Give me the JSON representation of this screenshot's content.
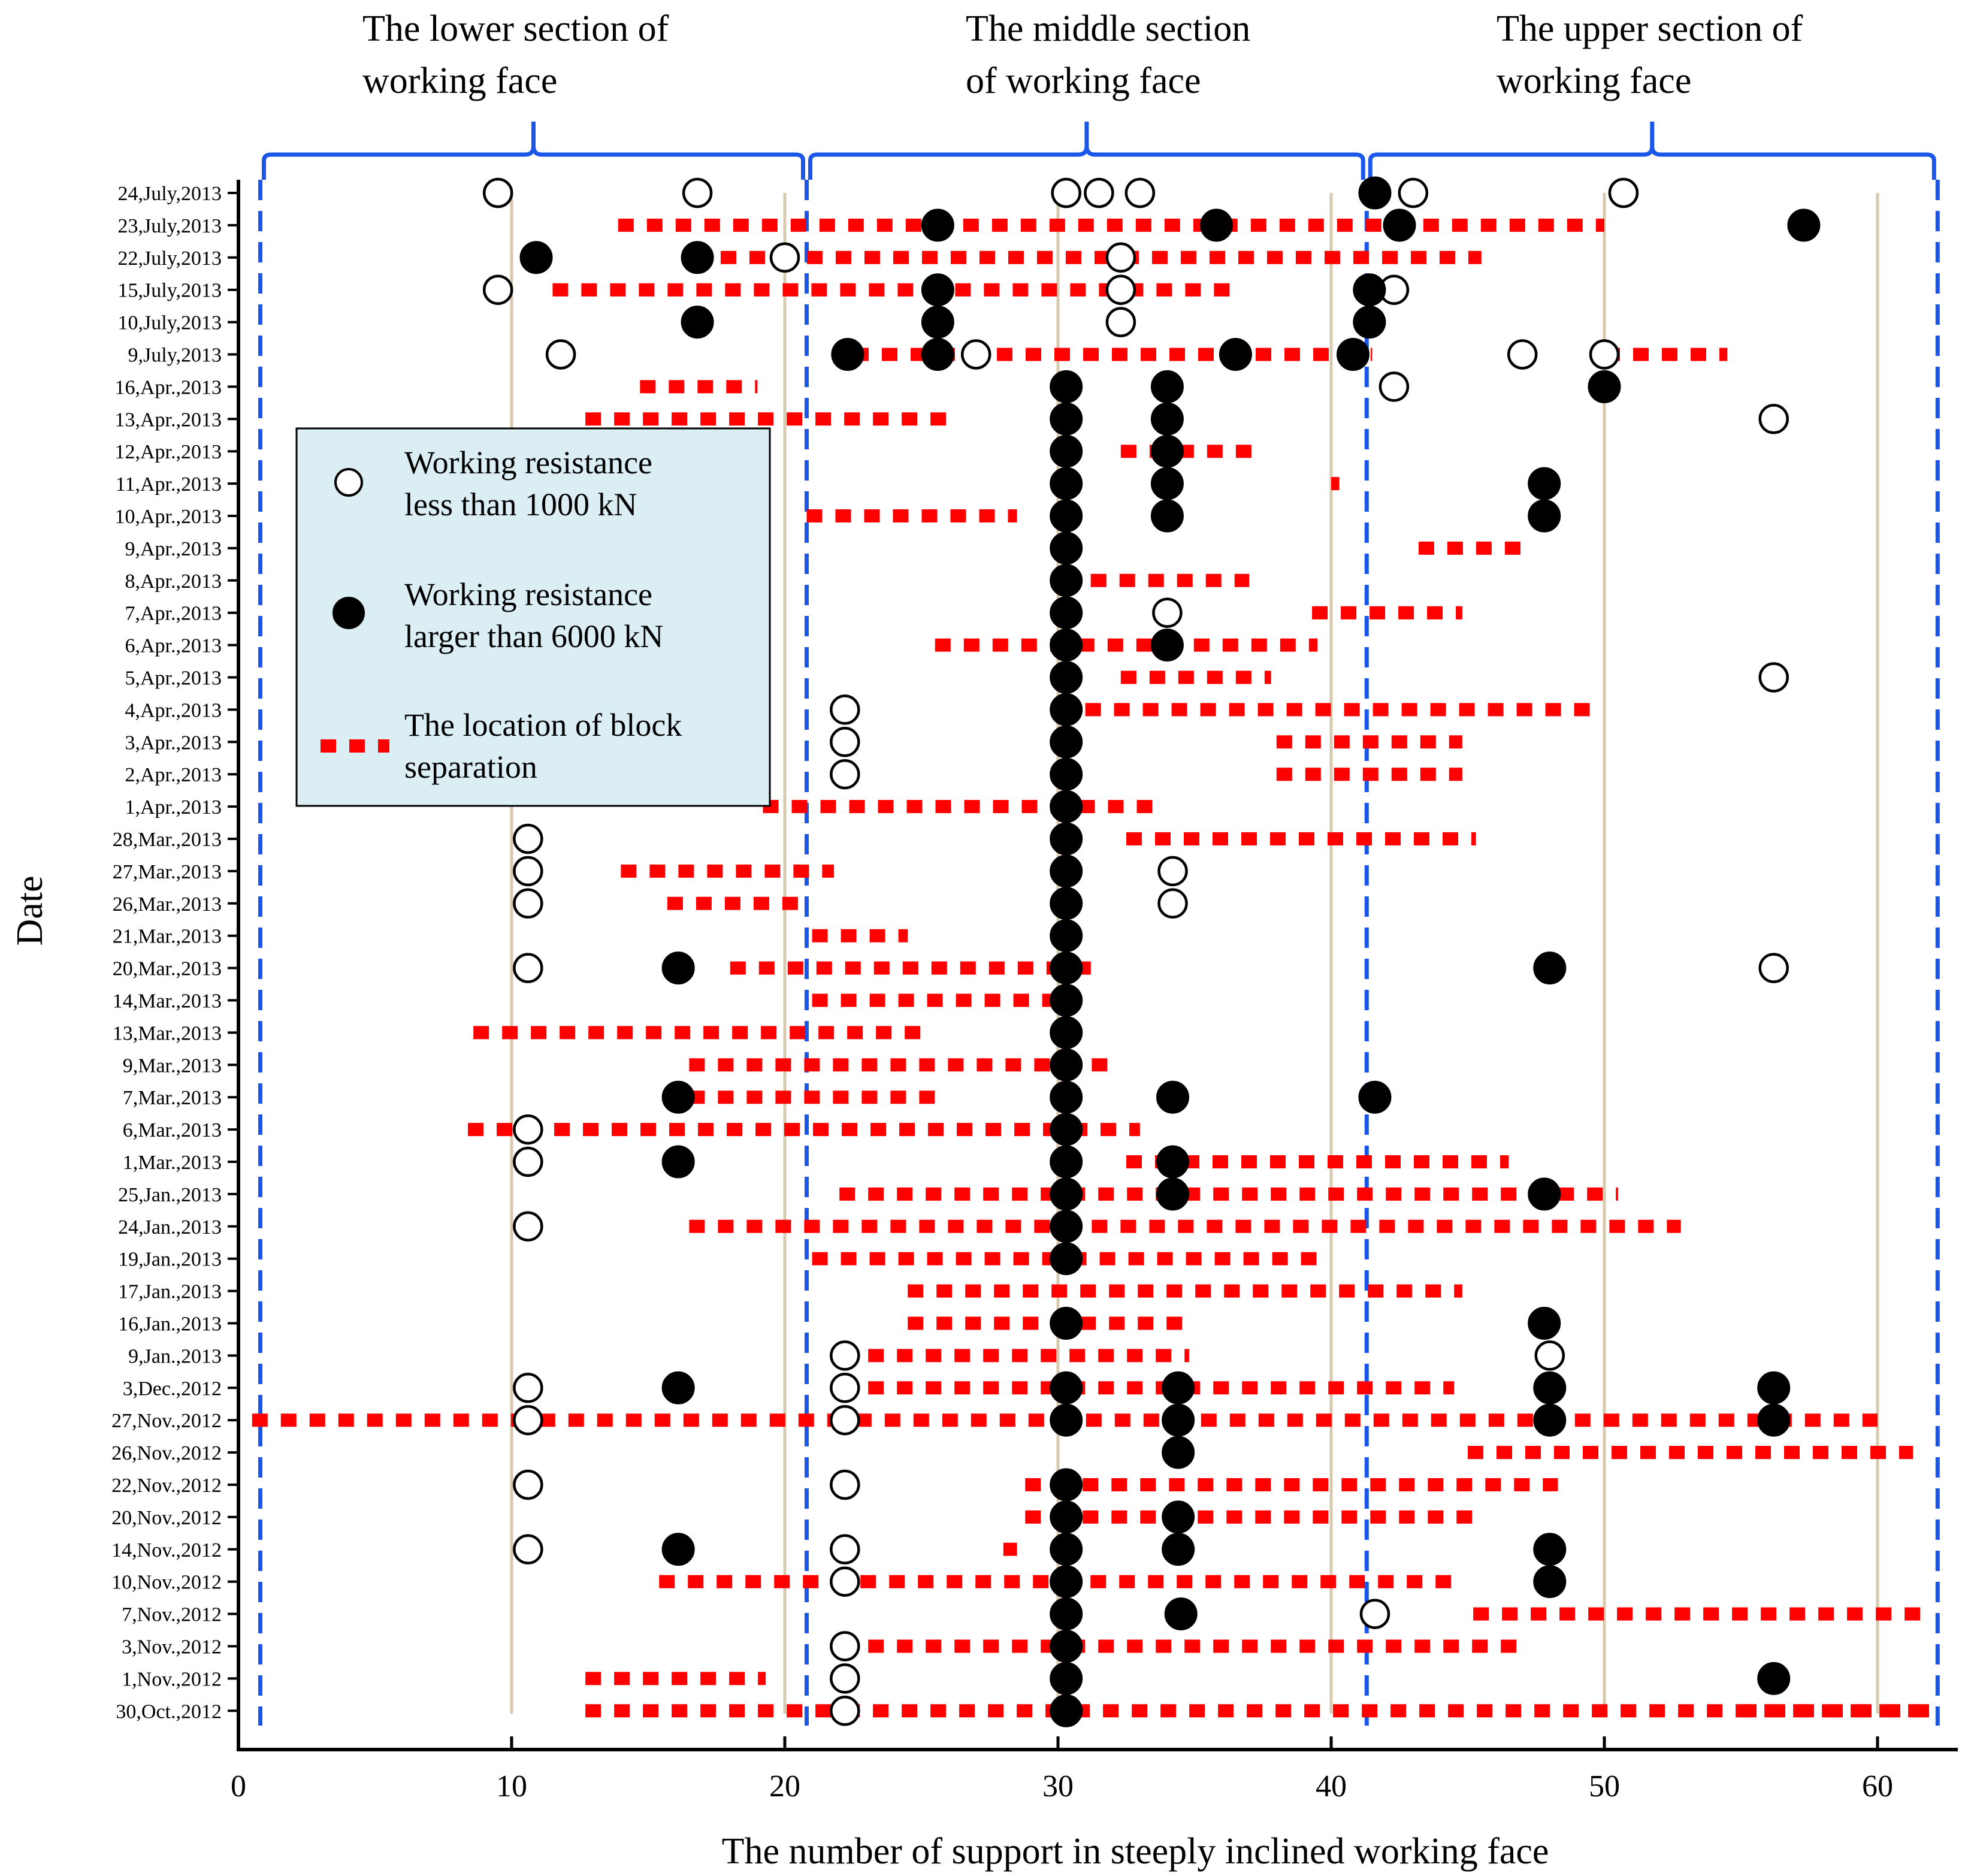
{
  "chart_data": {
    "type": "scatter",
    "title": "",
    "xlabel": "The number of support in steeply inclined working face",
    "ylabel": "Date",
    "xlim": [
      0,
      63
    ],
    "xticks": [
      0,
      10,
      20,
      30,
      40,
      50,
      60
    ],
    "colors": {
      "section_brace": "#1a56e8",
      "block_separation": "#ff0000",
      "gridline": "#d8c8ad",
      "legend_bg": "#daeef3",
      "point_stroke": "#000000"
    },
    "sections": [
      {
        "name": "The lower section of working face",
        "line1": "The lower section of",
        "line2": "working face",
        "range": [
          0.8,
          20.8
        ]
      },
      {
        "name": "The middle section of working face",
        "line1": "The middle section",
        "line2": "of working face",
        "range": [
          20.8,
          41.3
        ]
      },
      {
        "name": "The upper section of working face",
        "line1": "The upper section of",
        "line2": "working face",
        "range": [
          41.3,
          62.2
        ]
      }
    ],
    "legend": {
      "entries": [
        {
          "key": "low",
          "line1": "Working resistance",
          "line2": "less than 1000 kN"
        },
        {
          "key": "high",
          "line1": "Working resistance",
          "line2": "larger  than 6000 kN"
        },
        {
          "key": "sep",
          "line1": "The location of block",
          "line2": "separation"
        }
      ]
    },
    "dates": [
      "24,July,2013",
      "23,July,2013",
      "22,July,2013",
      "15,July,2013",
      "10,July,2013",
      "9,July,2013",
      "16,Apr.,2013",
      "13,Apr.,2013",
      "12,Apr.,2013",
      "11,Apr.,2013",
      "10,Apr.,2013",
      "9,Apr.,2013",
      "8,Apr.,2013",
      "7,Apr.,2013",
      "6,Apr.,2013",
      "5,Apr.,2013",
      "4,Apr.,2013",
      "3,Apr.,2013",
      "2,Apr.,2013",
      "1,Apr.,2013",
      "28,Mar.,2013",
      "27,Mar.,2013",
      "26,Mar.,2013",
      "21,Mar.,2013",
      "20,Mar.,2013",
      "14,Mar.,2013",
      "13,Mar.,2013",
      "9,Mar.,2013",
      "7,Mar.,2013",
      "6,Mar.,2013",
      "1,Mar.,2013",
      "25,Jan.,2013",
      "24,Jan.,2013",
      "19,Jan.,2013",
      "17,Jan.,2013",
      "16,Jan.,2013",
      "9,Jan.,2013",
      "3,Dec.,2012",
      "27,Nov.,2012",
      "26,Nov.,2012",
      "22,Nov.,2012",
      "20,Nov.,2012",
      "14,Nov.,2012",
      "10,Nov.,2012",
      "7,Nov.,2012",
      "3,Nov.,2012",
      "1,Nov.,2012",
      "30,Oct.,2012"
    ],
    "series": [
      {
        "name": "Working resistance less than 1000 kN",
        "marker": "open-circle",
        "points": [
          [
            "24,July,2013",
            9.5
          ],
          [
            "24,July,2013",
            16.8
          ],
          [
            "24,July,2013",
            30.3
          ],
          [
            "24,July,2013",
            31.5
          ],
          [
            "24,July,2013",
            33.0
          ],
          [
            "24,July,2013",
            43.0
          ],
          [
            "24,July,2013",
            50.7
          ],
          [
            "22,July,2013",
            20.0
          ],
          [
            "22,July,2013",
            32.3
          ],
          [
            "15,July,2013",
            9.5
          ],
          [
            "15,July,2013",
            32.3
          ],
          [
            "15,July,2013",
            42.3
          ],
          [
            "10,July,2013",
            32.3
          ],
          [
            "9,July,2013",
            11.8
          ],
          [
            "9,July,2013",
            27.0
          ],
          [
            "9,July,2013",
            47.0
          ],
          [
            "9,July,2013",
            50.0
          ],
          [
            "16,Apr.,2013",
            42.3
          ],
          [
            "13,Apr.,2013",
            56.2
          ],
          [
            "7,Apr.,2013",
            34.0
          ],
          [
            "5,Apr.,2013",
            56.2
          ],
          [
            "4,Apr.,2013",
            22.2
          ],
          [
            "3,Apr.,2013",
            22.2
          ],
          [
            "2,Apr.,2013",
            22.2
          ],
          [
            "28,Mar.,2013",
            10.6
          ],
          [
            "27,Mar.,2013",
            10.6
          ],
          [
            "27,Mar.,2013",
            34.2
          ],
          [
            "26,Mar.,2013",
            10.6
          ],
          [
            "26,Mar.,2013",
            34.2
          ],
          [
            "20,Mar.,2013",
            10.6
          ],
          [
            "20,Mar.,2013",
            56.2
          ],
          [
            "6,Mar.,2013",
            10.6
          ],
          [
            "1,Mar.,2013",
            10.6
          ],
          [
            "24,Jan.,2013",
            10.6
          ],
          [
            "9,Jan.,2013",
            22.2
          ],
          [
            "9,Jan.,2013",
            48.0
          ],
          [
            "3,Dec.,2012",
            10.6
          ],
          [
            "3,Dec.,2012",
            22.2
          ],
          [
            "27,Nov.,2012",
            10.6
          ],
          [
            "27,Nov.,2012",
            22.2
          ],
          [
            "22,Nov.,2012",
            10.6
          ],
          [
            "22,Nov.,2012",
            22.2
          ],
          [
            "14,Nov.,2012",
            10.6
          ],
          [
            "14,Nov.,2012",
            22.2
          ],
          [
            "10,Nov.,2012",
            22.2
          ],
          [
            "7,Nov.,2012",
            41.6
          ],
          [
            "3,Nov.,2012",
            22.2
          ],
          [
            "1,Nov.,2012",
            22.2
          ],
          [
            "30,Oct.,2012",
            22.2
          ]
        ]
      },
      {
        "name": "Working resistance larger than 6000 kN",
        "marker": "filled-circle",
        "points": [
          [
            "24,July,2013",
            41.6
          ],
          [
            "23,July,2013",
            25.6
          ],
          [
            "23,July,2013",
            35.8
          ],
          [
            "23,July,2013",
            42.5
          ],
          [
            "23,July,2013",
            57.3
          ],
          [
            "22,July,2013",
            10.9
          ],
          [
            "22,July,2013",
            16.8
          ],
          [
            "15,July,2013",
            25.6
          ],
          [
            "15,July,2013",
            41.4
          ],
          [
            "10,July,2013",
            16.8
          ],
          [
            "10,July,2013",
            25.6
          ],
          [
            "10,July,2013",
            41.4
          ],
          [
            "9,July,2013",
            22.3
          ],
          [
            "9,July,2013",
            25.6
          ],
          [
            "9,July,2013",
            36.5
          ],
          [
            "9,July,2013",
            40.8
          ],
          [
            "16,Apr.,2013",
            30.3
          ],
          [
            "16,Apr.,2013",
            34.0
          ],
          [
            "16,Apr.,2013",
            50.0
          ],
          [
            "13,Apr.,2013",
            30.3
          ],
          [
            "13,Apr.,2013",
            34.0
          ],
          [
            "12,Apr.,2013",
            30.3
          ],
          [
            "12,Apr.,2013",
            34.0
          ],
          [
            "11,Apr.,2013",
            30.3
          ],
          [
            "11,Apr.,2013",
            34.0
          ],
          [
            "11,Apr.,2013",
            47.8
          ],
          [
            "10,Apr.,2013",
            30.3
          ],
          [
            "10,Apr.,2013",
            34.0
          ],
          [
            "10,Apr.,2013",
            47.8
          ],
          [
            "9,Apr.,2013",
            30.3
          ],
          [
            "8,Apr.,2013",
            30.3
          ],
          [
            "7,Apr.,2013",
            30.3
          ],
          [
            "6,Apr.,2013",
            30.3
          ],
          [
            "6,Apr.,2013",
            34.0
          ],
          [
            "5,Apr.,2013",
            30.3
          ],
          [
            "4,Apr.,2013",
            30.3
          ],
          [
            "3,Apr.,2013",
            30.3
          ],
          [
            "2,Apr.,2013",
            30.3
          ],
          [
            "1,Apr.,2013",
            30.3
          ],
          [
            "28,Mar.,2013",
            30.3
          ],
          [
            "27,Mar.,2013",
            30.3
          ],
          [
            "26,Mar.,2013",
            30.3
          ],
          [
            "21,Mar.,2013",
            30.3
          ],
          [
            "20,Mar.,2013",
            16.1
          ],
          [
            "20,Mar.,2013",
            30.3
          ],
          [
            "20,Mar.,2013",
            48.0
          ],
          [
            "14,Mar.,2013",
            30.3
          ],
          [
            "13,Mar.,2013",
            30.3
          ],
          [
            "9,Mar.,2013",
            30.3
          ],
          [
            "7,Mar.,2013",
            16.1
          ],
          [
            "7,Mar.,2013",
            30.3
          ],
          [
            "7,Mar.,2013",
            34.2
          ],
          [
            "7,Mar.,2013",
            41.6
          ],
          [
            "6,Mar.,2013",
            30.3
          ],
          [
            "1,Mar.,2013",
            16.1
          ],
          [
            "1,Mar.,2013",
            30.3
          ],
          [
            "1,Mar.,2013",
            34.2
          ],
          [
            "25,Jan.,2013",
            30.3
          ],
          [
            "25,Jan.,2013",
            34.2
          ],
          [
            "25,Jan.,2013",
            47.8
          ],
          [
            "24,Jan.,2013",
            30.3
          ],
          [
            "19,Jan.,2013",
            30.3
          ],
          [
            "16,Jan.,2013",
            30.3
          ],
          [
            "16,Jan.,2013",
            47.8
          ],
          [
            "3,Dec.,2012",
            16.1
          ],
          [
            "3,Dec.,2012",
            30.3
          ],
          [
            "3,Dec.,2012",
            34.4
          ],
          [
            "3,Dec.,2012",
            48.0
          ],
          [
            "3,Dec.,2012",
            56.2
          ],
          [
            "27,Nov.,2012",
            30.3
          ],
          [
            "27,Nov.,2012",
            34.4
          ],
          [
            "27,Nov.,2012",
            48.0
          ],
          [
            "27,Nov.,2012",
            56.2
          ],
          [
            "26,Nov.,2012",
            34.4
          ],
          [
            "22,Nov.,2012",
            30.3
          ],
          [
            "20,Nov.,2012",
            30.3
          ],
          [
            "20,Nov.,2012",
            34.4
          ],
          [
            "14,Nov.,2012",
            16.1
          ],
          [
            "14,Nov.,2012",
            30.3
          ],
          [
            "14,Nov.,2012",
            34.4
          ],
          [
            "14,Nov.,2012",
            48.0
          ],
          [
            "10,Nov.,2012",
            30.3
          ],
          [
            "10,Nov.,2012",
            48.0
          ],
          [
            "7,Nov.,2012",
            30.3
          ],
          [
            "7,Nov.,2012",
            34.5
          ],
          [
            "3,Nov.,2012",
            30.3
          ],
          [
            "1,Nov.,2012",
            30.3
          ],
          [
            "1,Nov.,2012",
            56.2
          ],
          [
            "30,Oct.,2012",
            30.3
          ]
        ]
      },
      {
        "name": "The location of block separation",
        "marker": "dashed-line",
        "segments": [
          [
            "23,July,2013",
            13.9,
            50.0
          ],
          [
            "22,July,2013",
            16.6,
            45.5
          ],
          [
            "15,July,2013",
            11.5,
            36.5
          ],
          [
            "9,July,2013",
            22.5,
            41.5
          ],
          [
            "9,July,2013",
            50.0,
            54.5
          ],
          [
            "16,Apr.,2013",
            14.7,
            19.0
          ],
          [
            "13,Apr.,2013",
            12.7,
            26.3
          ],
          [
            "12,Apr.,2013",
            32.3,
            37.3
          ],
          [
            "11,Apr.,2013",
            40.0,
            40.3
          ],
          [
            "10,Apr.,2013",
            20.8,
            28.5
          ],
          [
            "9,Apr.,2013",
            43.2,
            47.2
          ],
          [
            "8,Apr.,2013",
            31.2,
            37.0
          ],
          [
            "7,Apr.,2013",
            39.3,
            44.8
          ],
          [
            "6,Apr.,2013",
            25.5,
            39.5
          ],
          [
            "5,Apr.,2013",
            32.3,
            37.8
          ],
          [
            "4,Apr.,2013",
            31.0,
            49.8
          ],
          [
            "3,Apr.,2013",
            38.0,
            44.8
          ],
          [
            "2,Apr.,2013",
            38.0,
            44.8
          ],
          [
            "1,Apr.,2013",
            19.2,
            33.5
          ],
          [
            "28,Mar.,2013",
            32.5,
            45.3
          ],
          [
            "27,Mar.,2013",
            14.0,
            21.8
          ],
          [
            "26,Mar.,2013",
            15.7,
            20.8
          ],
          [
            "21,Mar.,2013",
            21.0,
            24.5
          ],
          [
            "20,Mar.,2013",
            18.0,
            31.5
          ],
          [
            "14,Mar.,2013",
            21.0,
            29.8
          ],
          [
            "13,Mar.,2013",
            8.6,
            25.0
          ],
          [
            "9,Mar.,2013",
            16.5,
            32.0
          ],
          [
            "7,Mar.,2013",
            16.5,
            25.5
          ],
          [
            "6,Mar.,2013",
            8.4,
            33.0
          ],
          [
            "1,Mar.,2013",
            32.5,
            46.5
          ],
          [
            "25,Jan.,2013",
            22.0,
            50.5
          ],
          [
            "24,Jan.,2013",
            16.5,
            52.8
          ],
          [
            "19,Jan.,2013",
            21.0,
            39.6
          ],
          [
            "17,Jan.,2013",
            24.5,
            44.8
          ],
          [
            "16,Jan.,2013",
            24.5,
            34.8
          ],
          [
            "9,Jan.,2013",
            22.0,
            34.8
          ],
          [
            "3,Dec.,2012",
            22.0,
            44.5
          ],
          [
            "27,Nov.,2012",
            0.5,
            60.0
          ],
          [
            "26,Nov.,2012",
            45.0,
            61.3
          ],
          [
            "22,Nov.,2012",
            28.8,
            48.3
          ],
          [
            "20,Nov.,2012",
            28.8,
            45.2
          ],
          [
            "14,Nov.,2012",
            28.0,
            28.5
          ],
          [
            "10,Nov.,2012",
            15.4,
            44.8
          ],
          [
            "7,Nov.,2012",
            45.2,
            62.0
          ],
          [
            "3,Nov.,2012",
            22.0,
            47.0
          ],
          [
            "1,Nov.,2012",
            12.7,
            19.3
          ],
          [
            "30,Oct.,2012",
            55.0,
            62.0
          ],
          [
            "30,Oct.,2012",
            12.7,
            62.0
          ]
        ]
      }
    ]
  }
}
